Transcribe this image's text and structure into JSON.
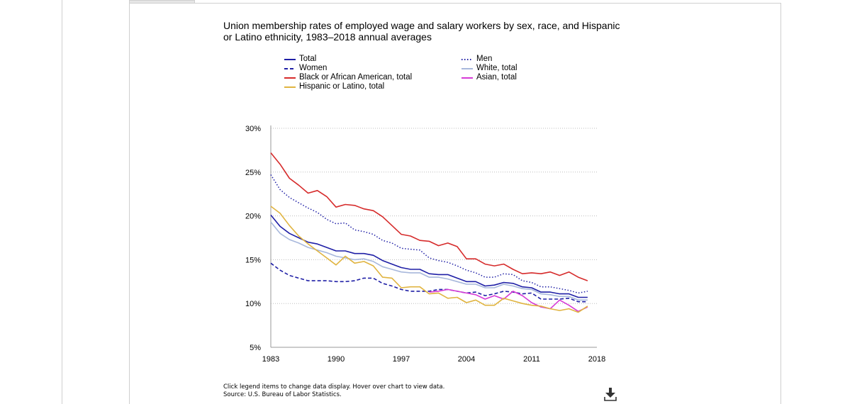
{
  "chart_data": {
    "type": "line",
    "title": "Union membership rates of employed wage and salary workers by sex, race, and Hispanic or Latino ethnicity, 1983–2018 annual averages",
    "xlabel": "",
    "ylabel": "",
    "x": [
      1983,
      1984,
      1985,
      1986,
      1987,
      1988,
      1989,
      1990,
      1991,
      1992,
      1993,
      1994,
      1995,
      1996,
      1997,
      1998,
      1999,
      2000,
      2001,
      2002,
      2003,
      2004,
      2005,
      2006,
      2007,
      2008,
      2009,
      2010,
      2011,
      2012,
      2013,
      2014,
      2015,
      2016,
      2017
    ],
    "xticks": [
      "1983",
      "1990",
      "1997",
      "2004",
      "2011",
      "2018"
    ],
    "yticks": [
      "5%",
      "10%",
      "15%",
      "20%",
      "25%",
      "30%"
    ],
    "xlim": [
      1983,
      2018
    ],
    "ylim": [
      5,
      30
    ],
    "grid": true,
    "legend_position": "top",
    "series": [
      {
        "name": "Total",
        "color": "#1f1fa6",
        "dash": "solid",
        "values": [
          20.1,
          18.8,
          18.0,
          17.5,
          17.0,
          16.8,
          16.4,
          16.0,
          16.0,
          15.7,
          15.7,
          15.5,
          14.9,
          14.5,
          14.1,
          13.9,
          13.9,
          13.4,
          13.3,
          13.3,
          12.9,
          12.5,
          12.5,
          12.0,
          12.1,
          12.4,
          12.3,
          11.9,
          11.8,
          11.3,
          11.3,
          11.1,
          11.1,
          10.7,
          10.7
        ]
      },
      {
        "name": "Men",
        "color": "#1f1fa6",
        "dash": "dotted",
        "values": [
          24.7,
          23.0,
          22.1,
          21.5,
          20.9,
          20.4,
          19.6,
          19.1,
          19.2,
          18.4,
          18.2,
          17.9,
          17.2,
          16.9,
          16.3,
          16.2,
          16.1,
          15.2,
          14.9,
          14.7,
          14.3,
          13.8,
          13.5,
          13.0,
          13.0,
          13.4,
          13.3,
          12.6,
          12.4,
          11.9,
          11.9,
          11.7,
          11.5,
          11.2,
          11.4
        ]
      },
      {
        "name": "Women",
        "color": "#1f1fa6",
        "dash": "dashed",
        "values": [
          14.6,
          13.8,
          13.2,
          12.9,
          12.6,
          12.6,
          12.6,
          12.5,
          12.5,
          12.6,
          12.9,
          12.9,
          12.3,
          12.0,
          11.6,
          11.4,
          11.4,
          11.4,
          11.6,
          11.6,
          11.4,
          11.2,
          11.3,
          10.9,
          11.1,
          11.4,
          11.3,
          11.1,
          11.2,
          10.5,
          10.5,
          10.5,
          10.6,
          10.2,
          10.2
        ]
      },
      {
        "name": "White, total",
        "color": "#a8b8dc",
        "dash": "solid",
        "values": [
          19.3,
          18.0,
          17.3,
          16.9,
          16.4,
          16.1,
          15.8,
          15.4,
          15.2,
          15.0,
          15.1,
          14.8,
          14.2,
          13.9,
          13.6,
          13.5,
          13.5,
          13.0,
          13.0,
          12.8,
          12.5,
          12.2,
          12.2,
          11.8,
          11.8,
          12.2,
          12.0,
          11.7,
          11.6,
          11.1,
          11.0,
          10.8,
          10.8,
          10.4,
          10.4
        ]
      },
      {
        "name": "Black or African American, total",
        "color": "#d62b2b",
        "dash": "solid",
        "values": [
          27.2,
          25.9,
          24.3,
          23.5,
          22.6,
          22.9,
          22.2,
          21.0,
          21.3,
          21.2,
          20.8,
          20.6,
          19.9,
          18.9,
          17.9,
          17.7,
          17.2,
          17.1,
          16.6,
          16.9,
          16.5,
          15.1,
          15.1,
          14.5,
          14.3,
          14.5,
          13.9,
          13.4,
          13.5,
          13.4,
          13.6,
          13.2,
          13.6,
          13.0,
          12.6
        ]
      },
      {
        "name": "Asian, total",
        "color": "#d63ad6",
        "dash": "solid",
        "values": [
          null,
          null,
          null,
          null,
          null,
          null,
          null,
          null,
          null,
          null,
          null,
          null,
          null,
          null,
          null,
          null,
          null,
          11.3,
          11.4,
          11.6,
          11.4,
          11.2,
          11.0,
          10.5,
          10.9,
          10.5,
          11.4,
          10.9,
          10.1,
          9.6,
          9.4,
          10.4,
          9.8,
          9.1,
          9.6
        ]
      },
      {
        "name": "Hispanic or Latino, total",
        "color": "#e0b440",
        "dash": "solid",
        "values": [
          21.1,
          20.3,
          18.9,
          17.7,
          16.8,
          16.0,
          15.2,
          14.4,
          15.4,
          14.6,
          14.8,
          14.3,
          13.0,
          12.9,
          11.8,
          11.9,
          11.9,
          11.1,
          11.2,
          10.6,
          10.7,
          10.1,
          10.4,
          9.8,
          9.8,
          10.6,
          10.3,
          10.0,
          9.8,
          9.7,
          9.4,
          9.2,
          9.4,
          9.0,
          9.7
        ]
      }
    ]
  },
  "legend": [
    {
      "label": "Total",
      "color": "#1f1fa6",
      "dash": "solid"
    },
    {
      "label": "Women",
      "color": "#1f1fa6",
      "dash": "dashed"
    },
    {
      "label": "Black or African American, total",
      "color": "#d62b2b",
      "dash": "solid"
    },
    {
      "label": "Hispanic or Latino, total",
      "color": "#e0b440",
      "dash": "solid"
    },
    {
      "label": "Men",
      "color": "#1f1fa6",
      "dash": "dotted"
    },
    {
      "label": "White, total",
      "color": "#a8b8dc",
      "dash": "solid"
    },
    {
      "label": "Asian, total",
      "color": "#d63ad6",
      "dash": "solid"
    }
  ],
  "footnote": {
    "line1": "Click legend items to change data display. Hover over chart to view data.",
    "line2": "Source: U.S. Bureau of Labor Statistics."
  },
  "icons": {
    "download": "download-icon"
  }
}
